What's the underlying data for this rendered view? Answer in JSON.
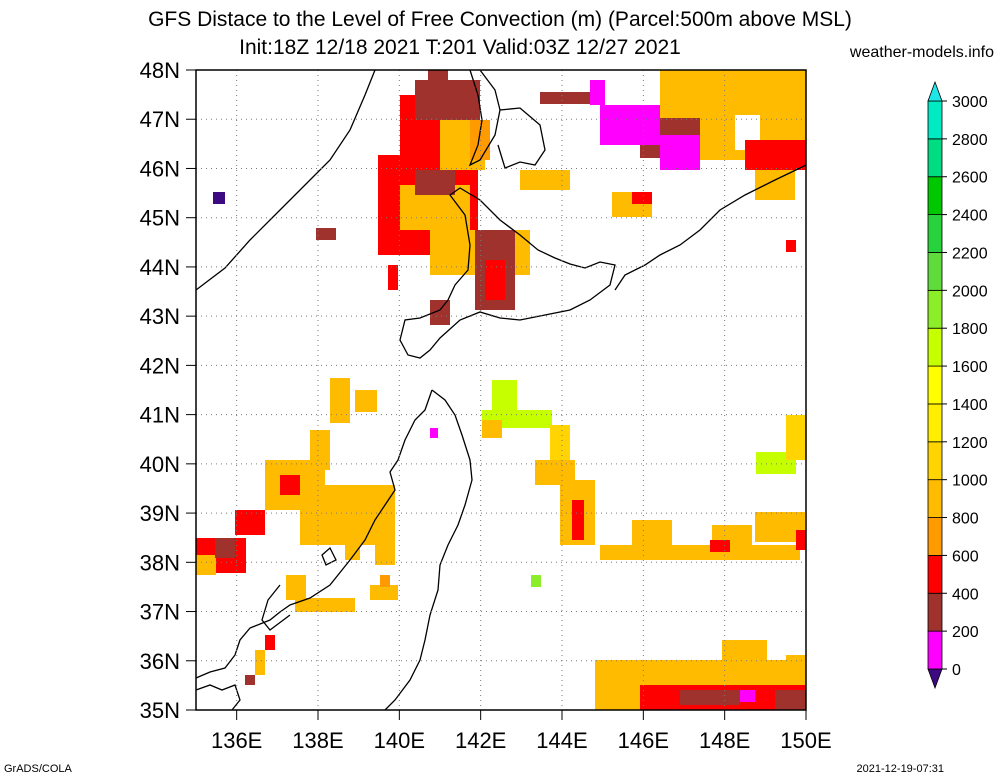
{
  "header": {
    "title_line1": "GFS Distace to the Level of Free Convection (m) (Parcel:500m above MSL)",
    "title_line2": "Init:18Z 12/18 2021 T:201 Valid:03Z 12/27 2021",
    "site": "weather-models.info"
  },
  "map": {
    "lat_labels": [
      "48N",
      "47N",
      "46N",
      "45N",
      "44N",
      "43N",
      "42N",
      "41N",
      "40N",
      "39N",
      "38N",
      "37N",
      "36N",
      "35N"
    ],
    "lon_labels": [
      "136E",
      "138E",
      "140E",
      "142E",
      "144E",
      "146E",
      "148E",
      "150E"
    ],
    "lat_range": [
      35,
      48
    ],
    "lon_range": [
      135,
      150
    ],
    "grid": "dotted"
  },
  "colorbar": {
    "levels": [
      "0",
      "200",
      "400",
      "600",
      "800",
      "1000",
      "1200",
      "1400",
      "1600",
      "1800",
      "2000",
      "2200",
      "2400",
      "2600",
      "2800",
      "3000"
    ],
    "colors": [
      "#3d0a82",
      "#ff00ff",
      "#a0322d",
      "#ff0000",
      "#ff9a00",
      "#ffbb00",
      "#ffd400",
      "#ffee00",
      "#ffff00",
      "#c6ff00",
      "#8cee28",
      "#5fdc3c",
      "#28d23c",
      "#00c800",
      "#00dc82",
      "#00eac4",
      "#1ee6e6"
    ]
  },
  "footer": {
    "left": "GrADS/COLA",
    "right": "2021-12-19-07:31"
  }
}
